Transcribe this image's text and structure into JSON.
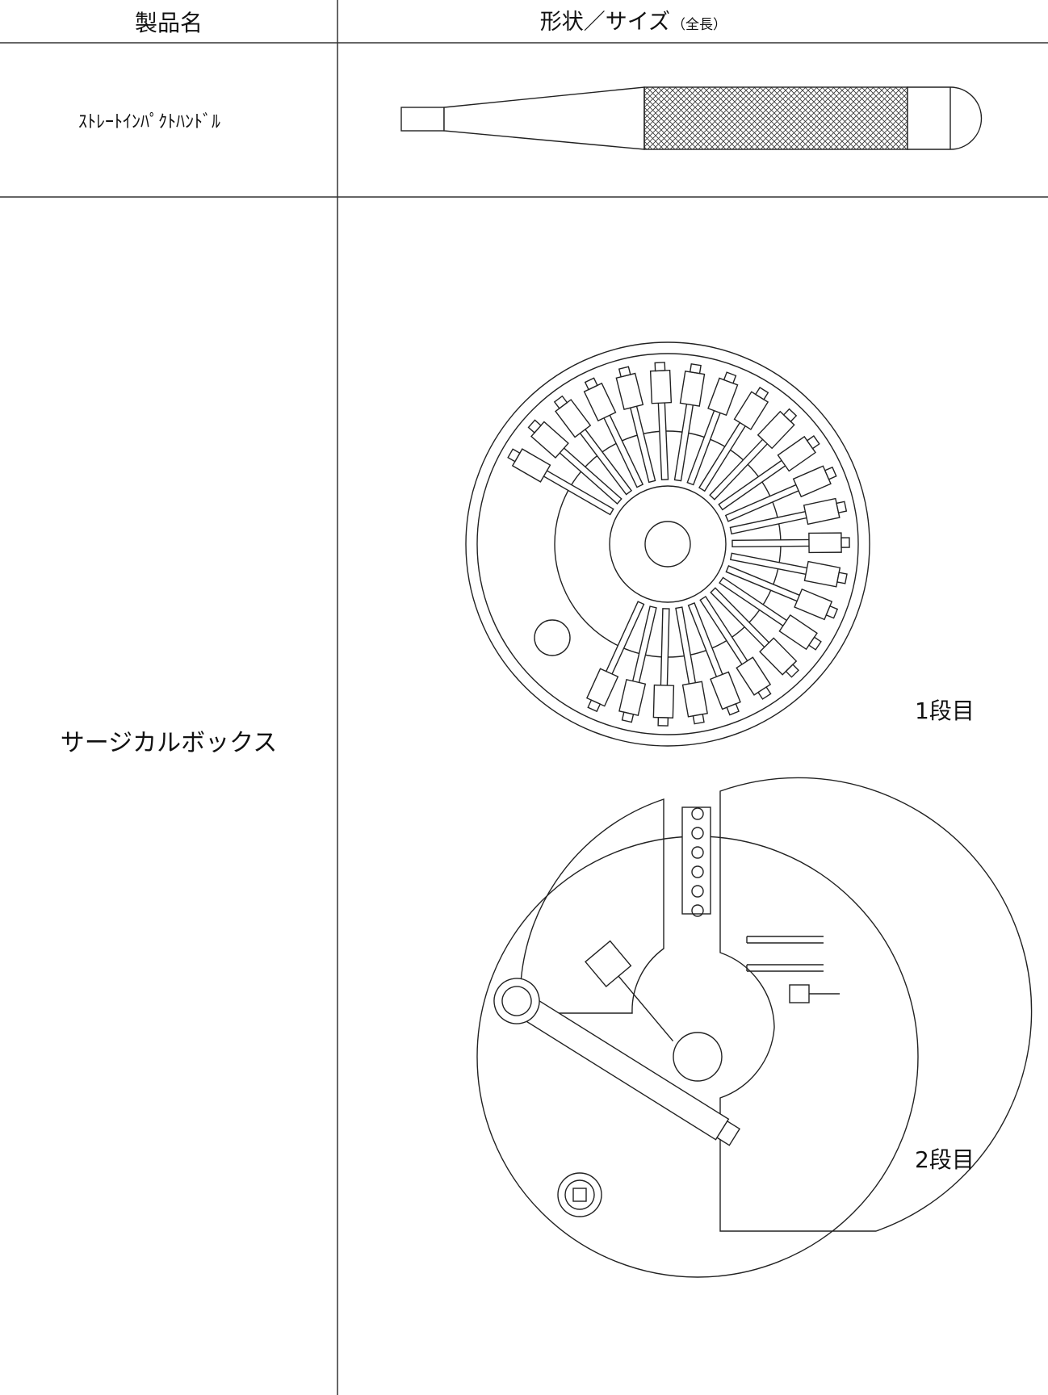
{
  "table": {
    "header": {
      "name": "製品名",
      "shape": "形状／サイズ",
      "shape_note": "（全長）"
    },
    "rows": [
      {
        "name": "ｽﾄﾚｰﾄｲﾝﾊﾟｸﾄﾊﾝﾄﾞﾙ"
      },
      {
        "name": "サージカルボックス",
        "labels": [
          "1段目",
          "2段目"
        ]
      }
    ]
  }
}
